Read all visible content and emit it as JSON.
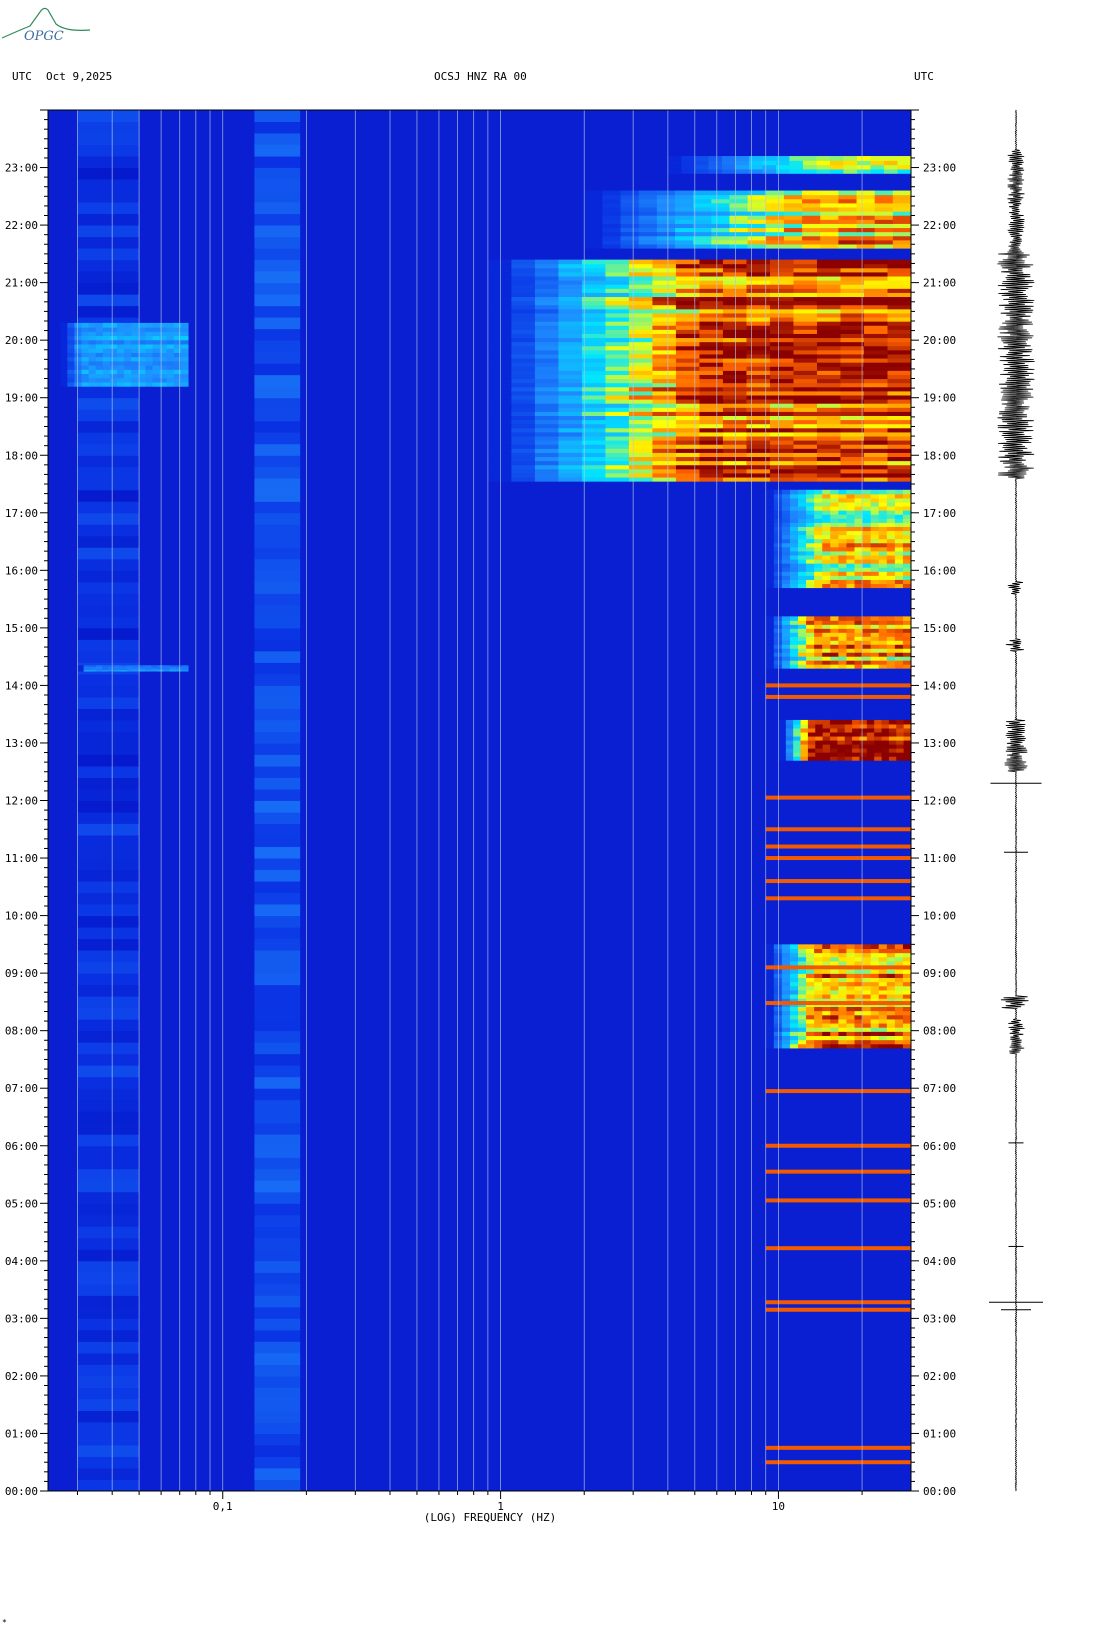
{
  "header": {
    "left_label": "UTC",
    "date": "Oct 9,2025",
    "station": "OCSJ HNZ RA 00",
    "right_label": "UTC"
  },
  "logo": {
    "text": "OPGC",
    "icon": "volcano-logo-icon",
    "color": "#2e8b57"
  },
  "corner_mark": "*",
  "chart_data": {
    "type": "heatmap",
    "title": "OCSJ HNZ RA 00",
    "xlabel": "(LOG) FREQUENCY (HZ)",
    "x_scale": "log",
    "xlim": [
      0.0235,
      30
    ],
    "x_ticks": [
      {
        "value": 0.1,
        "label": "0,1"
      },
      {
        "value": 1,
        "label": "1"
      },
      {
        "value": 10,
        "label": "10"
      }
    ],
    "ylim": [
      0,
      24
    ],
    "y_ticks": [
      {
        "value": 0,
        "label": "00:00"
      },
      {
        "value": 1,
        "label": "01:00"
      },
      {
        "value": 2,
        "label": "02:00"
      },
      {
        "value": 3,
        "label": "03:00"
      },
      {
        "value": 4,
        "label": "04:00"
      },
      {
        "value": 5,
        "label": "05:00"
      },
      {
        "value": 6,
        "label": "06:00"
      },
      {
        "value": 7,
        "label": "07:00"
      },
      {
        "value": 8,
        "label": "08:00"
      },
      {
        "value": 9,
        "label": "09:00"
      },
      {
        "value": 10,
        "label": "10:00"
      },
      {
        "value": 11,
        "label": "11:00"
      },
      {
        "value": 12,
        "label": "12:00"
      },
      {
        "value": 13,
        "label": "13:00"
      },
      {
        "value": 14,
        "label": "14:00"
      },
      {
        "value": 15,
        "label": "15:00"
      },
      {
        "value": 16,
        "label": "16:00"
      },
      {
        "value": 17,
        "label": "17:00"
      },
      {
        "value": 18,
        "label": "18:00"
      },
      {
        "value": 19,
        "label": "19:00"
      },
      {
        "value": 20,
        "label": "20:00"
      },
      {
        "value": 21,
        "label": "21:00"
      },
      {
        "value": 22,
        "label": "22:00"
      },
      {
        "value": 23,
        "label": "23:00"
      }
    ],
    "grid_x_values": [
      0.03,
      0.04,
      0.05,
      0.06,
      0.07,
      0.08,
      0.09,
      0.1,
      0.2,
      0.3,
      0.4,
      0.5,
      0.6,
      0.7,
      0.8,
      0.9,
      1,
      2,
      3,
      4,
      5,
      6,
      7,
      8,
      9,
      10,
      20
    ],
    "colormap": [
      "#0000b4",
      "#0a36e6",
      "#1e8cff",
      "#00e6ff",
      "#ffff00",
      "#ff6400",
      "#8b0000"
    ],
    "background_color": "#0a1ed2",
    "bands": [
      {
        "fmin": 0.03,
        "fmax": 0.05,
        "intensity": 0.15,
        "comment": ""
      },
      {
        "fmin": 0.13,
        "fmax": 0.19,
        "intensity": 0.22
      }
    ],
    "events": [
      {
        "tmin": 17.55,
        "tmax": 21.4,
        "fmin": 0.9,
        "fmax": 30,
        "peak_fmin": 5,
        "intensity": 0.95
      },
      {
        "tmin": 21.6,
        "tmax": 22.6,
        "fmin": 2,
        "fmax": 30,
        "peak_fmin": 12,
        "intensity": 0.75
      },
      {
        "tmin": 22.9,
        "tmax": 23.2,
        "fmin": 4,
        "fmax": 30,
        "peak_fmin": 14,
        "intensity": 0.55
      },
      {
        "tmin": 12.7,
        "tmax": 13.4,
        "fmin": 10,
        "fmax": 30,
        "peak_fmin": 13,
        "intensity": 1.0
      },
      {
        "tmin": 7.7,
        "tmax": 9.5,
        "fmin": 9,
        "fmax": 30,
        "peak_fmin": 13,
        "intensity": 0.85
      },
      {
        "tmin": 14.3,
        "tmax": 15.2,
        "fmin": 9,
        "fmax": 30,
        "peak_fmin": 13,
        "intensity": 0.8
      },
      {
        "tmin": 15.7,
        "tmax": 17.4,
        "fmin": 9,
        "fmax": 30,
        "peak_fmin": 14,
        "intensity": 0.7
      },
      {
        "tmin": 19.2,
        "tmax": 20.3,
        "fmin": 0.026,
        "fmax": 0.075,
        "peak_fmin": 0.03,
        "intensity": 0.3
      },
      {
        "tmin": 14.25,
        "tmax": 14.35,
        "fmin": 0.03,
        "fmax": 0.075,
        "peak_fmin": 0.03,
        "intensity": 0.25
      }
    ],
    "event_lines": [
      3.15,
      3.28,
      4.22,
      5.05,
      5.55,
      6.0,
      6.95,
      8.48,
      9.1,
      10.3,
      10.6,
      11.0,
      11.2,
      11.5,
      12.05,
      13.8,
      14.0,
      0.5,
      0.75
    ],
    "trace": {
      "time_range": [
        0,
        24
      ],
      "quiet_amplitude": 0.02,
      "bursts": [
        {
          "start": 17.6,
          "end": 21.5,
          "amplitude": 0.55
        },
        {
          "start": 21.5,
          "end": 23.3,
          "amplitude": 0.25
        },
        {
          "start": 12.5,
          "end": 13.4,
          "amplitude": 0.35
        },
        {
          "start": 14.6,
          "end": 14.8,
          "amplitude": 0.3
        },
        {
          "start": 7.6,
          "end": 8.2,
          "amplitude": 0.25
        },
        {
          "start": 8.4,
          "end": 8.6,
          "amplitude": 0.45
        },
        {
          "start": 15.6,
          "end": 15.8,
          "amplitude": 0.25
        }
      ],
      "spikes": [
        {
          "t": 3.15,
          "amplitude": 0.5
        },
        {
          "t": 3.28,
          "amplitude": 0.9
        },
        {
          "t": 12.3,
          "amplitude": 0.85
        },
        {
          "t": 11.1,
          "amplitude": 0.4
        },
        {
          "t": 6.05,
          "amplitude": 0.25
        },
        {
          "t": 4.25,
          "amplitude": 0.25
        }
      ]
    }
  }
}
